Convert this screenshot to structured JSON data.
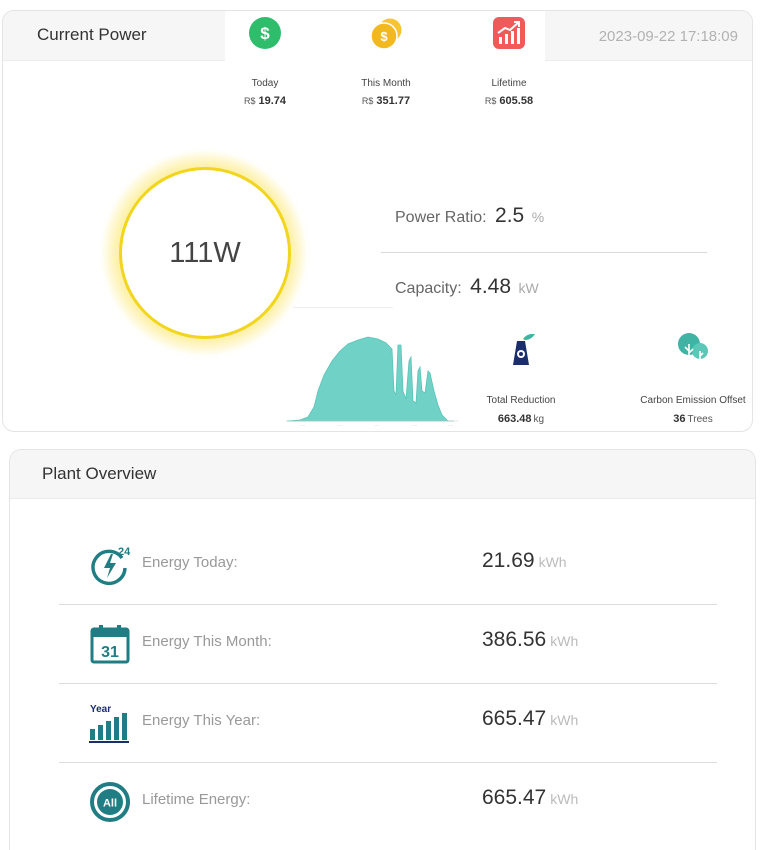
{
  "current_power": {
    "title": "Current Power",
    "datetime": "2023-09-22 17:18:09",
    "earnings": [
      {
        "label": "Today",
        "currency": "R$",
        "value": "19.74",
        "icon": "dollar-coin-icon"
      },
      {
        "label": "This Month",
        "currency": "R$",
        "value": "351.77",
        "icon": "stacked-coins-icon"
      },
      {
        "label": "Lifetime",
        "currency": "R$",
        "value": "605.58",
        "icon": "trend-up-icon"
      }
    ],
    "power_value": "111W",
    "power_ratio": {
      "label": "Power Ratio:",
      "value": "2.5",
      "unit": "%"
    },
    "capacity": {
      "label": "Capacity:",
      "value": "4.48",
      "unit": "kW"
    },
    "total_reduction": {
      "label": "Total Reduction",
      "value": "663.48",
      "unit": "kg",
      "icon": "factory-icon"
    },
    "carbon_offset": {
      "label": "Carbon Emission Offset",
      "value": "36",
      "unit": "Trees",
      "icon": "trees-icon"
    },
    "colors": {
      "ring": "#f2d51e",
      "chart_fill": "#70d2c6",
      "money_green": "#2ebd6b",
      "money_gold": "#f2b81f",
      "trend_red": "#f15a5a",
      "teal": "#1f7d83"
    }
  },
  "plant_overview": {
    "title": "Plant Overview",
    "rows": [
      {
        "label": "Energy Today:",
        "value": "21.69",
        "unit": "kWh",
        "icon": "energy-24h-icon"
      },
      {
        "label": "Energy This Month:",
        "value": "386.56",
        "unit": "kWh",
        "icon": "calendar-31-icon"
      },
      {
        "label": "Energy This Year:",
        "value": "665.47",
        "unit": "kWh",
        "icon": "year-bars-icon",
        "icon_text": "Year"
      },
      {
        "label": "Lifetime Energy:",
        "value": "665.47",
        "unit": "kWh",
        "icon": "all-time-icon",
        "icon_text": "All"
      }
    ]
  },
  "icon_text": {
    "calendar_day": "31",
    "hours": "24"
  }
}
